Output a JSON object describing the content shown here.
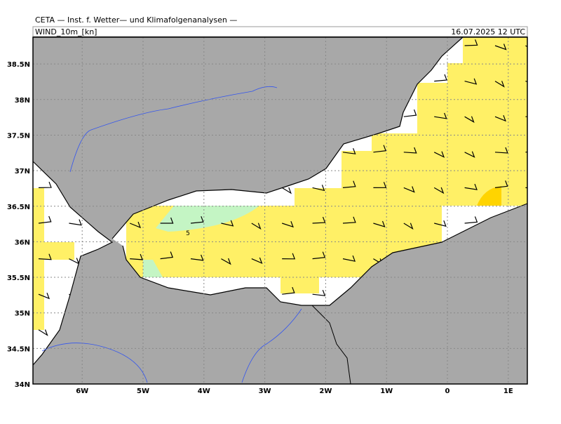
{
  "header": {
    "title": "CETA — Inst. f. Wetter— und Klimafolgenanalysen —",
    "variable": "WIND_10m_[kn]",
    "datetime": "16.07.2025 12 UTC"
  },
  "map": {
    "lat_ticks": [
      {
        "value": 38.5,
        "label": "38.5N"
      },
      {
        "value": 38,
        "label": "38N"
      },
      {
        "value": 37.5,
        "label": "37.5N"
      },
      {
        "value": 37,
        "label": "37N"
      },
      {
        "value": 36.5,
        "label": "36.5N"
      },
      {
        "value": 36,
        "label": "36N"
      },
      {
        "value": 35.5,
        "label": "35.5N"
      },
      {
        "value": 35,
        "label": "35N"
      },
      {
        "value": 34.5,
        "label": "34.5N"
      },
      {
        "value": 34,
        "label": "34N"
      }
    ],
    "lon_ticks": [
      {
        "value": -6,
        "label": "6W"
      },
      {
        "value": -5,
        "label": "5W"
      },
      {
        "value": -4,
        "label": "4W"
      },
      {
        "value": -3,
        "label": "3W"
      },
      {
        "value": -2,
        "label": "2W"
      },
      {
        "value": -1,
        "label": "1W"
      },
      {
        "value": 0,
        "label": "0"
      },
      {
        "value": 1,
        "label": "1E"
      }
    ],
    "contour_label": "5"
  }
}
